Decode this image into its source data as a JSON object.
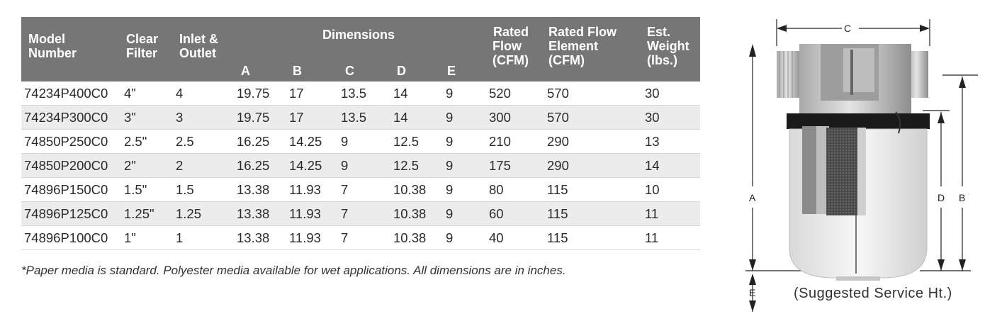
{
  "table": {
    "headers": {
      "model_1": "Model",
      "model_2": "Number",
      "clear_1": "Clear",
      "clear_2": "Filter",
      "inlet_1": "Inlet &",
      "inlet_2": "Outlet",
      "dimensions": "Dimensions",
      "dim_a": "A",
      "dim_b": "B",
      "dim_c": "C",
      "dim_d": "D",
      "dim_e": "E",
      "rated_1": "Rated",
      "rated_2": "Flow",
      "rated_3": "(CFM)",
      "element_1": "Rated Flow",
      "element_2": "Element",
      "element_3": "(CFM)",
      "weight_1": "Est.",
      "weight_2": "Weight",
      "weight_3": "(lbs.)"
    },
    "rows": [
      {
        "model": "74234P400C0",
        "filter": "4\"",
        "inlet": "4",
        "a": "19.75",
        "b": "17",
        "c": "13.5",
        "d": "14",
        "e": "9",
        "flow": "520",
        "element": "570",
        "weight": "30"
      },
      {
        "model": "74234P300C0",
        "filter": "3\"",
        "inlet": "3",
        "a": "19.75",
        "b": "17",
        "c": "13.5",
        "d": "14",
        "e": "9",
        "flow": "300",
        "element": "570",
        "weight": "30"
      },
      {
        "model": "74850P250C0",
        "filter": "2.5\"",
        "inlet": "2.5",
        "a": "16.25",
        "b": "14.25",
        "c": "9",
        "d": "12.5",
        "e": "9",
        "flow": "210",
        "element": "290",
        "weight": "13"
      },
      {
        "model": "74850P200C0",
        "filter": "2\"",
        "inlet": "2",
        "a": "16.25",
        "b": "14.25",
        "c": "9",
        "d": "12.5",
        "e": "9",
        "flow": "175",
        "element": "290",
        "weight": "14"
      },
      {
        "model": "74896P150C0",
        "filter": "1.5\"",
        "inlet": "1.5",
        "a": "13.38",
        "b": "11.93",
        "c": "7",
        "d": "10.38",
        "e": "9",
        "flow": "80",
        "element": "115",
        "weight": "10"
      },
      {
        "model": "74896P125C0",
        "filter": "1.25\"",
        "inlet": "1.25",
        "a": "13.38",
        "b": "11.93",
        "c": "7",
        "d": "10.38",
        "e": "9",
        "flow": "60",
        "element": "115",
        "weight": "11"
      },
      {
        "model": "74896P100C0",
        "filter": "1\"",
        "inlet": "1",
        "a": "13.38",
        "b": "11.93",
        "c": "7",
        "d": "10.38",
        "e": "9",
        "flow": "40",
        "element": "115",
        "weight": "11"
      }
    ]
  },
  "footnote": "*Paper media is standard. Polyester media available for wet applications. All dimensions are in inches.",
  "diagram": {
    "label_a": "A",
    "label_b": "B",
    "label_c": "C",
    "label_d": "D",
    "label_e": "E",
    "caption": "(Suggested Service Ht.)"
  },
  "colors": {
    "header_bg": "#767676",
    "row_alt_bg": "#ececec"
  }
}
